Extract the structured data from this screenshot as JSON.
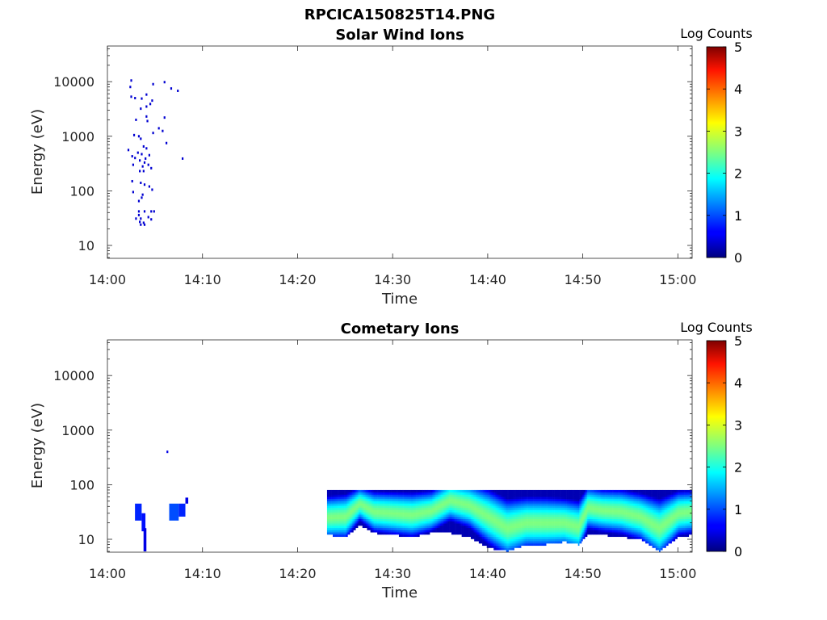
{
  "figure_title": "RPCICA150825T14.PNG",
  "chart_data": [
    {
      "type": "heatmap",
      "title": "Solar Wind Ions",
      "xlabel": "Time",
      "ylabel": "Energy (eV)",
      "x_ticks": [
        "14:00",
        "14:10",
        "14:20",
        "14:30",
        "14:40",
        "14:50",
        "15:00"
      ],
      "y_ticks": [
        10,
        100,
        1000,
        10000
      ],
      "y_scale": "log",
      "ylim": [
        5.8,
        45000
      ],
      "xlim_minutes": [
        0,
        61.5
      ],
      "colorbar": {
        "label": "Log Counts",
        "range": [
          0,
          5
        ],
        "ticks": [
          0,
          1,
          2,
          3,
          4,
          5
        ],
        "colormap": "jet"
      },
      "points": [
        {
          "t": 2.5,
          "e": 10500,
          "v": 0.4
        },
        {
          "t": 2.4,
          "e": 8000,
          "v": 0.4
        },
        {
          "t": 6.0,
          "e": 9800,
          "v": 0.4
        },
        {
          "t": 4.8,
          "e": 9000,
          "v": 0.4
        },
        {
          "t": 6.7,
          "e": 7500,
          "v": 0.4
        },
        {
          "t": 7.4,
          "e": 6800,
          "v": 0.4
        },
        {
          "t": 4.1,
          "e": 5800,
          "v": 0.4
        },
        {
          "t": 2.5,
          "e": 5300,
          "v": 0.4
        },
        {
          "t": 2.9,
          "e": 5000,
          "v": 0.4
        },
        {
          "t": 3.6,
          "e": 4900,
          "v": 0.4
        },
        {
          "t": 4.7,
          "e": 4500,
          "v": 0.4
        },
        {
          "t": 4.5,
          "e": 3900,
          "v": 0.4
        },
        {
          "t": 4.1,
          "e": 3500,
          "v": 0.4
        },
        {
          "t": 3.5,
          "e": 3200,
          "v": 0.4
        },
        {
          "t": 6.0,
          "e": 2200,
          "v": 0.4
        },
        {
          "t": 3.0,
          "e": 2000,
          "v": 0.4
        },
        {
          "t": 4.1,
          "e": 2300,
          "v": 0.4
        },
        {
          "t": 4.2,
          "e": 1900,
          "v": 0.4
        },
        {
          "t": 5.4,
          "e": 1400,
          "v": 0.4
        },
        {
          "t": 5.8,
          "e": 1250,
          "v": 0.4
        },
        {
          "t": 4.8,
          "e": 1150,
          "v": 0.4
        },
        {
          "t": 2.8,
          "e": 1050,
          "v": 0.4
        },
        {
          "t": 3.3,
          "e": 1000,
          "v": 0.4
        },
        {
          "t": 3.5,
          "e": 900,
          "v": 0.4
        },
        {
          "t": 6.2,
          "e": 750,
          "v": 0.4
        },
        {
          "t": 3.8,
          "e": 650,
          "v": 0.4
        },
        {
          "t": 4.1,
          "e": 600,
          "v": 0.4
        },
        {
          "t": 2.2,
          "e": 560,
          "v": 0.4
        },
        {
          "t": 3.2,
          "e": 500,
          "v": 0.4
        },
        {
          "t": 3.6,
          "e": 470,
          "v": 0.4
        },
        {
          "t": 4.4,
          "e": 450,
          "v": 0.4
        },
        {
          "t": 2.6,
          "e": 430,
          "v": 0.4
        },
        {
          "t": 2.9,
          "e": 400,
          "v": 0.4
        },
        {
          "t": 4.0,
          "e": 390,
          "v": 0.4
        },
        {
          "t": 7.9,
          "e": 390,
          "v": 0.4
        },
        {
          "t": 3.4,
          "e": 360,
          "v": 0.4
        },
        {
          "t": 3.9,
          "e": 330,
          "v": 0.4
        },
        {
          "t": 2.7,
          "e": 300,
          "v": 0.4
        },
        {
          "t": 4.3,
          "e": 300,
          "v": 0.4
        },
        {
          "t": 3.7,
          "e": 280,
          "v": 0.4
        },
        {
          "t": 4.6,
          "e": 260,
          "v": 0.4
        },
        {
          "t": 3.4,
          "e": 230,
          "v": 0.4
        },
        {
          "t": 3.8,
          "e": 230,
          "v": 0.4
        },
        {
          "t": 2.6,
          "e": 150,
          "v": 0.4
        },
        {
          "t": 3.5,
          "e": 140,
          "v": 0.4
        },
        {
          "t": 3.9,
          "e": 130,
          "v": 0.4
        },
        {
          "t": 4.4,
          "e": 120,
          "v": 0.4
        },
        {
          "t": 4.7,
          "e": 105,
          "v": 0.4
        },
        {
          "t": 2.7,
          "e": 95,
          "v": 0.4
        },
        {
          "t": 3.7,
          "e": 85,
          "v": 0.4
        },
        {
          "t": 3.6,
          "e": 75,
          "v": 0.4
        },
        {
          "t": 3.3,
          "e": 65,
          "v": 0.4
        },
        {
          "t": 3.3,
          "e": 42,
          "v": 0.4
        },
        {
          "t": 3.9,
          "e": 42,
          "v": 0.4
        },
        {
          "t": 4.6,
          "e": 42,
          "v": 0.4
        },
        {
          "t": 4.9,
          "e": 42,
          "v": 0.4
        },
        {
          "t": 3.3,
          "e": 36,
          "v": 0.4
        },
        {
          "t": 3.0,
          "e": 31,
          "v": 0.4
        },
        {
          "t": 3.5,
          "e": 31,
          "v": 0.4
        },
        {
          "t": 4.3,
          "e": 33,
          "v": 0.4
        },
        {
          "t": 4.6,
          "e": 30,
          "v": 0.4
        },
        {
          "t": 3.4,
          "e": 27,
          "v": 0.4
        },
        {
          "t": 3.8,
          "e": 26,
          "v": 0.4
        },
        {
          "t": 3.5,
          "e": 24,
          "v": 0.4
        },
        {
          "t": 3.9,
          "e": 24,
          "v": 0.4
        }
      ]
    },
    {
      "type": "heatmap",
      "title": "Cometary Ions",
      "xlabel": "Time",
      "ylabel": "Energy (eV)",
      "x_ticks": [
        "14:00",
        "14:10",
        "14:20",
        "14:30",
        "14:40",
        "14:50",
        "15:00"
      ],
      "y_ticks": [
        10,
        100,
        1000,
        10000
      ],
      "y_scale": "log",
      "ylim": [
        5.8,
        45000
      ],
      "xlim_minutes": [
        0,
        61.5
      ],
      "colorbar": {
        "label": "Log Counts",
        "range": [
          0,
          5
        ],
        "ticks": [
          0,
          1,
          2,
          3,
          4,
          5
        ],
        "colormap": "jet"
      },
      "points": [
        {
          "t": 6.3,
          "e": 400,
          "v": 0.5
        }
      ],
      "blocks": [
        {
          "t0": 2.9,
          "t1": 3.6,
          "e0": 22,
          "e1": 45,
          "v": 0.8
        },
        {
          "t0": 3.6,
          "t1": 4.0,
          "e0": 14,
          "e1": 30,
          "v": 0.7
        },
        {
          "t0": 3.8,
          "t1": 4.1,
          "e0": 6,
          "e1": 16,
          "v": 0.5
        },
        {
          "t0": 6.5,
          "t1": 7.5,
          "e0": 22,
          "e1": 45,
          "v": 1.0
        },
        {
          "t0": 7.5,
          "t1": 8.2,
          "e0": 26,
          "e1": 45,
          "v": 0.8
        },
        {
          "t0": 8.2,
          "t1": 8.5,
          "e0": 45,
          "e1": 58,
          "v": 0.5
        }
      ],
      "band": {
        "t_start": 23.1,
        "t_end": 61.5,
        "e_top": 80,
        "center_eV": [
          [
            23.1,
            25
          ],
          [
            25.0,
            26
          ],
          [
            26.5,
            45
          ],
          [
            28.0,
            32
          ],
          [
            30.0,
            30
          ],
          [
            32.0,
            28
          ],
          [
            34.0,
            33
          ],
          [
            36.0,
            52
          ],
          [
            38.0,
            42
          ],
          [
            40.0,
            26
          ],
          [
            42.0,
            16
          ],
          [
            44.0,
            20
          ],
          [
            46.0,
            20
          ],
          [
            48.0,
            20
          ],
          [
            49.5,
            17
          ],
          [
            50.5,
            38
          ],
          [
            52.0,
            34
          ],
          [
            54.0,
            32
          ],
          [
            56.0,
            26
          ],
          [
            58.0,
            16
          ],
          [
            60.0,
            30
          ],
          [
            61.5,
            32
          ]
        ],
        "bottom_eV": [
          [
            23.1,
            12
          ],
          [
            25.0,
            11
          ],
          [
            26.5,
            18
          ],
          [
            28.0,
            13
          ],
          [
            30.0,
            12
          ],
          [
            32.0,
            11
          ],
          [
            34.0,
            13
          ],
          [
            36.0,
            13
          ],
          [
            38.0,
            11
          ],
          [
            40.0,
            7
          ],
          [
            42.0,
            6
          ],
          [
            44.0,
            8
          ],
          [
            46.0,
            8
          ],
          [
            48.0,
            9
          ],
          [
            49.5,
            8
          ],
          [
            50.5,
            12
          ],
          [
            52.0,
            12
          ],
          [
            54.0,
            11
          ],
          [
            56.0,
            10
          ],
          [
            58.0,
            6
          ],
          [
            60.0,
            11
          ],
          [
            61.5,
            12
          ]
        ],
        "peak_log_counts": 2.5
      }
    }
  ]
}
